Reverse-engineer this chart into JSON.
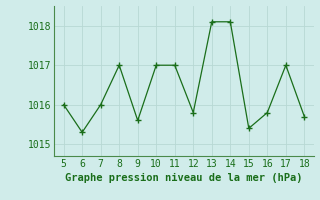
{
  "x": [
    5,
    6,
    7,
    8,
    9,
    10,
    11,
    12,
    13,
    14,
    15,
    16,
    17,
    18
  ],
  "y": [
    1016.0,
    1015.3,
    1016.0,
    1017.0,
    1015.6,
    1017.0,
    1017.0,
    1015.8,
    1018.1,
    1018.1,
    1015.4,
    1015.8,
    1017.0,
    1015.7
  ],
  "line_color": "#1a6e1a",
  "marker": "+",
  "marker_color": "#1a6e1a",
  "bg_color": "#d0ecea",
  "grid_color": "#b8d8d4",
  "xlabel": "Graphe pression niveau de la mer (hPa)",
  "xlabel_color": "#1a6e1a",
  "xlabel_fontsize": 7.5,
  "tick_color": "#1a6e1a",
  "tick_fontsize": 7,
  "yticks": [
    1015,
    1016,
    1017,
    1018
  ],
  "xticks": [
    5,
    6,
    7,
    8,
    9,
    10,
    11,
    12,
    13,
    14,
    15,
    16,
    17,
    18
  ],
  "ylim": [
    1014.7,
    1018.5
  ],
  "xlim": [
    4.5,
    18.5
  ],
  "border_color": "#4a8a4a"
}
